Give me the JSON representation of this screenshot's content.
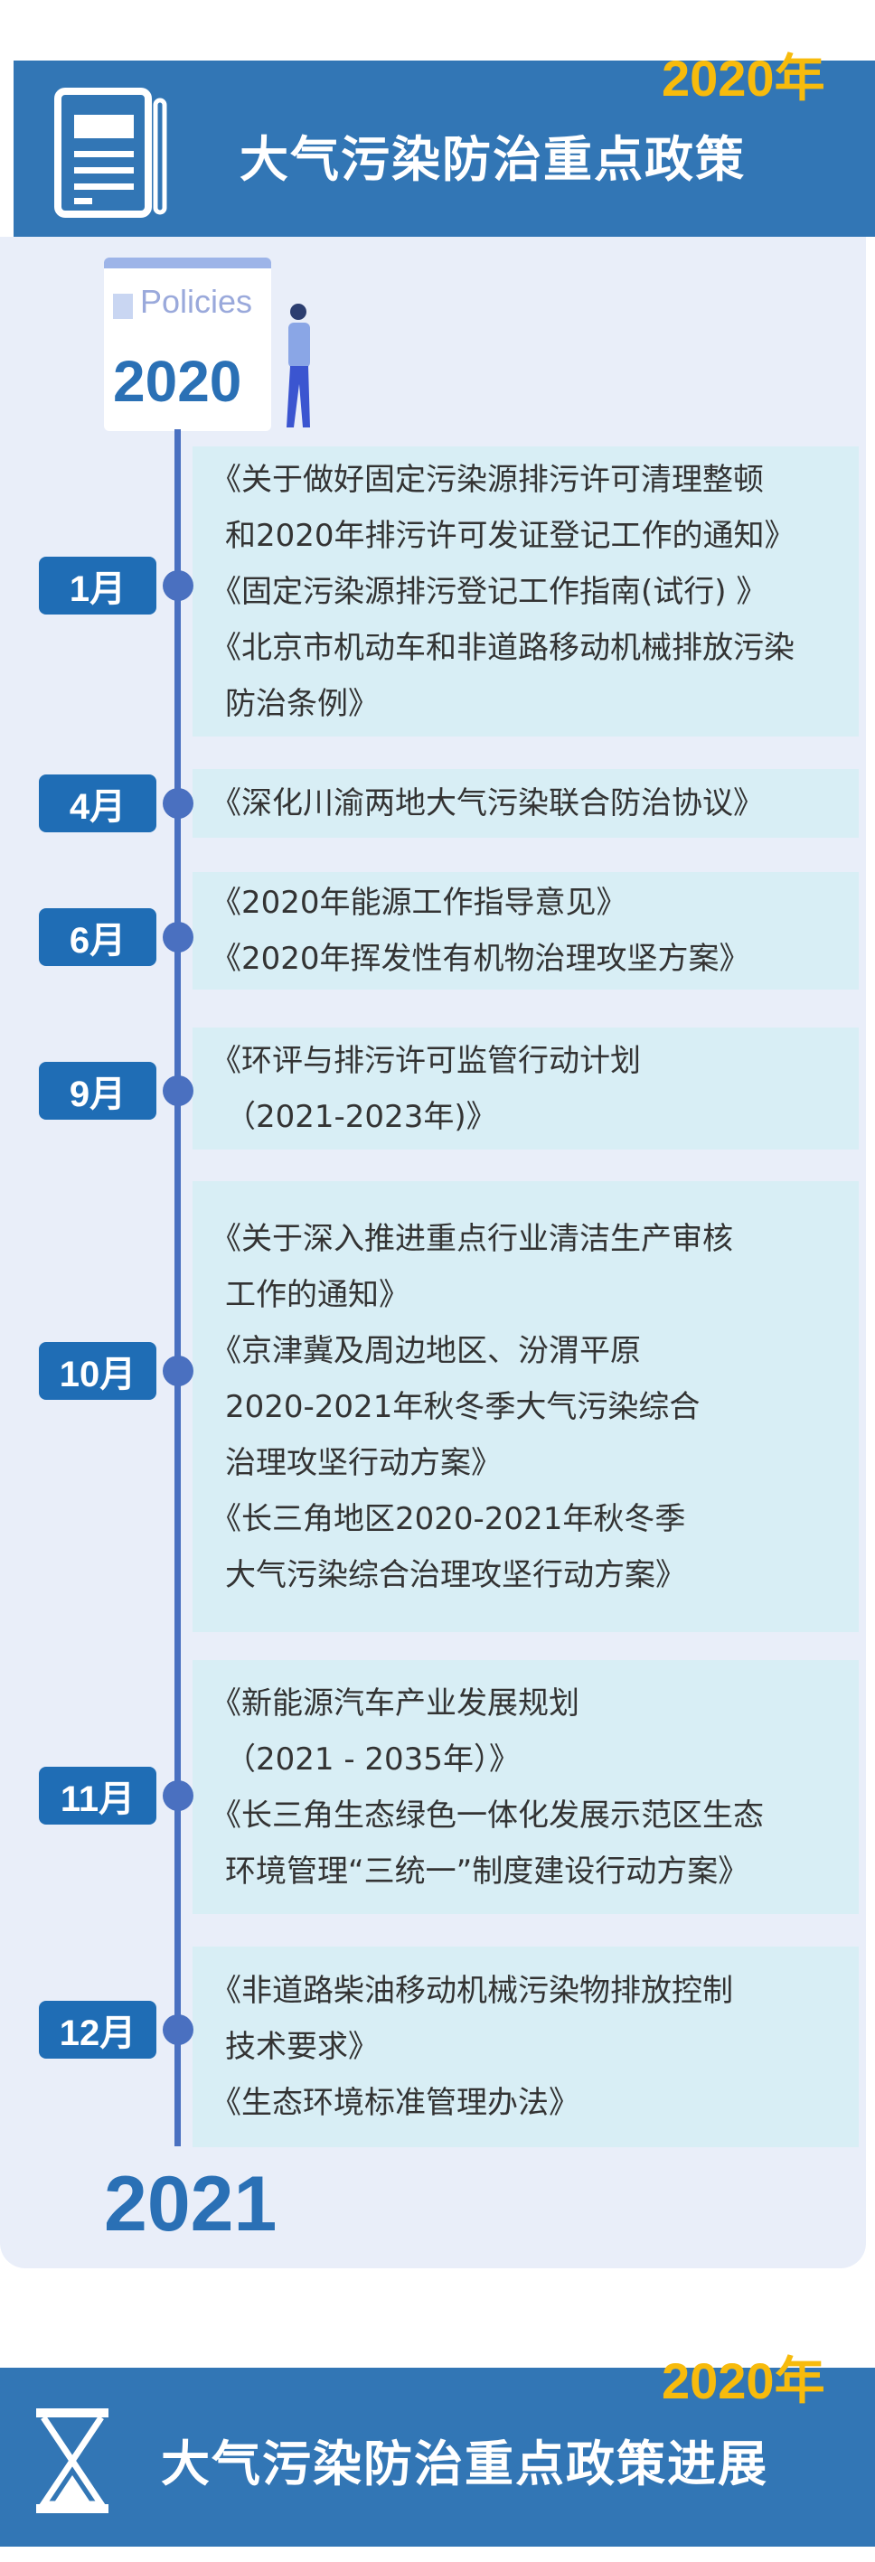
{
  "header": {
    "year_tag": "2020年",
    "title": "大气污染防治重点政策",
    "icon": "newspaper-icon"
  },
  "illustration": {
    "label": "Policies",
    "year": "2020"
  },
  "timeline": [
    {
      "month": "1月",
      "lines": [
        "《关于做好固定污染源排污许可清理整顿",
        "和2020年排污许可发证登记工作的通知》",
        "《固定污染源排污登记工作指南(试行) 》",
        "《北京市机动车和非道路移动机械排放污染",
        "防治条例》"
      ]
    },
    {
      "month": "4月",
      "lines": [
        "《深化川渝两地大气污染联合防治协议》"
      ]
    },
    {
      "month": "6月",
      "lines": [
        "《2020年能源工作指导意见》",
        "《2020年挥发性有机物治理攻坚方案》"
      ]
    },
    {
      "month": "9月",
      "lines": [
        "《环评与排污许可监管行动计划",
        "（2021-2023年)》"
      ]
    },
    {
      "month": "10月",
      "lines": [
        "《关于深入推进重点行业清洁生产审核",
        "工作的通知》",
        "《京津冀及周边地区、汾渭平原",
        "2020-2021年秋冬季大气污染综合",
        "治理攻坚行动方案》",
        "《长三角地区2020-2021年秋冬季",
        "大气污染综合治理攻坚行动方案》"
      ]
    },
    {
      "month": "11月",
      "lines": [
        "《新能源汽车产业发展规划",
        "（2021 - 2035年）》",
        "《长三角生态绿色一体化发展示范区生态",
        "环境管理“三统一”制度建设行动方案》"
      ]
    },
    {
      "month": "12月",
      "lines": [
        "《非道路柴油移动机械污染物排放控制",
        "技术要求》",
        "《生态环境标准管理办法》"
      ]
    }
  ],
  "end_year": "2021",
  "footer": {
    "year_tag": "2020年",
    "title": "大气污染防治重点政策进展",
    "icon": "hourglass-icon"
  },
  "colors": {
    "banner": "#3276b5",
    "year_tag": "#f7bb0c",
    "month_badge": "#1f6db5",
    "timeline": "#4a70c0",
    "box": "#d8eef5",
    "panel": "#e9eef9"
  }
}
